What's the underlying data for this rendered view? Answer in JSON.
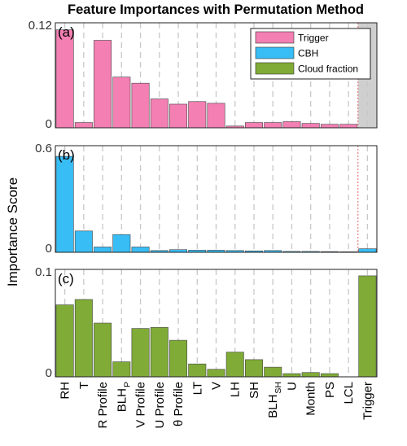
{
  "chart_data": {
    "type": "bar",
    "title": "Feature Importances with Permutation Method",
    "ylabel": "Importance Score",
    "categories": [
      {
        "main": "RH",
        "sub": ""
      },
      {
        "main": "T",
        "sub": ""
      },
      {
        "main": "R Profile",
        "sub": ""
      },
      {
        "main": "BLH",
        "sub": "P"
      },
      {
        "main": "V Profile",
        "sub": ""
      },
      {
        "main": "U Profile",
        "sub": ""
      },
      {
        "main": "θ Profile",
        "sub": ""
      },
      {
        "main": "LT",
        "sub": ""
      },
      {
        "main": "V",
        "sub": ""
      },
      {
        "main": "LH",
        "sub": ""
      },
      {
        "main": "SH",
        "sub": ""
      },
      {
        "main": "BLH",
        "sub": "SH"
      },
      {
        "main": "U",
        "sub": ""
      },
      {
        "main": "Month",
        "sub": ""
      },
      {
        "main": "PS",
        "sub": ""
      },
      {
        "main": "LCL",
        "sub": ""
      },
      {
        "main": "Trigger",
        "sub": ""
      }
    ],
    "legend": {
      "placement": "top-right",
      "entries": [
        {
          "label": "Trigger",
          "color": "#f37fb3"
        },
        {
          "label": "CBH",
          "color": "#38bdf5"
        },
        {
          "label": "Cloud fraction",
          "color": "#7fab36"
        }
      ]
    },
    "panels": [
      {
        "label": "(a)",
        "series": "Trigger",
        "color": "#f37fb3",
        "ylim": [
          0,
          0.12
        ],
        "yticks": [
          "0",
          "0.12"
        ],
        "values": [
          0.112,
          0.006,
          0.1,
          0.058,
          0.051,
          0.033,
          0.027,
          0.03,
          0.028,
          0.002,
          0.006,
          0.006,
          0.007,
          0.005,
          0.004,
          0.004,
          null
        ],
        "shaded_category": "Trigger"
      },
      {
        "label": "(b)",
        "series": "CBH",
        "color": "#38bdf5",
        "ylim": [
          0,
          0.6
        ],
        "yticks": [
          "0",
          "0.6"
        ],
        "values": [
          0.54,
          0.12,
          0.03,
          0.1,
          0.03,
          0.01,
          0.015,
          0.012,
          0.012,
          0.01,
          0.008,
          0.01,
          0.005,
          0.005,
          0.004,
          0.003,
          0.02
        ]
      },
      {
        "label": "(c)",
        "series": "Cloud fraction",
        "color": "#7fab36",
        "ylim": [
          0,
          0.1
        ],
        "yticks": [
          "0",
          "0.1"
        ],
        "values": [
          0.067,
          0.072,
          0.05,
          0.014,
          0.045,
          0.046,
          0.034,
          0.012,
          0.007,
          0.023,
          0.016,
          0.009,
          0.003,
          0.004,
          0.003,
          0.0,
          0.094
        ]
      }
    ]
  }
}
